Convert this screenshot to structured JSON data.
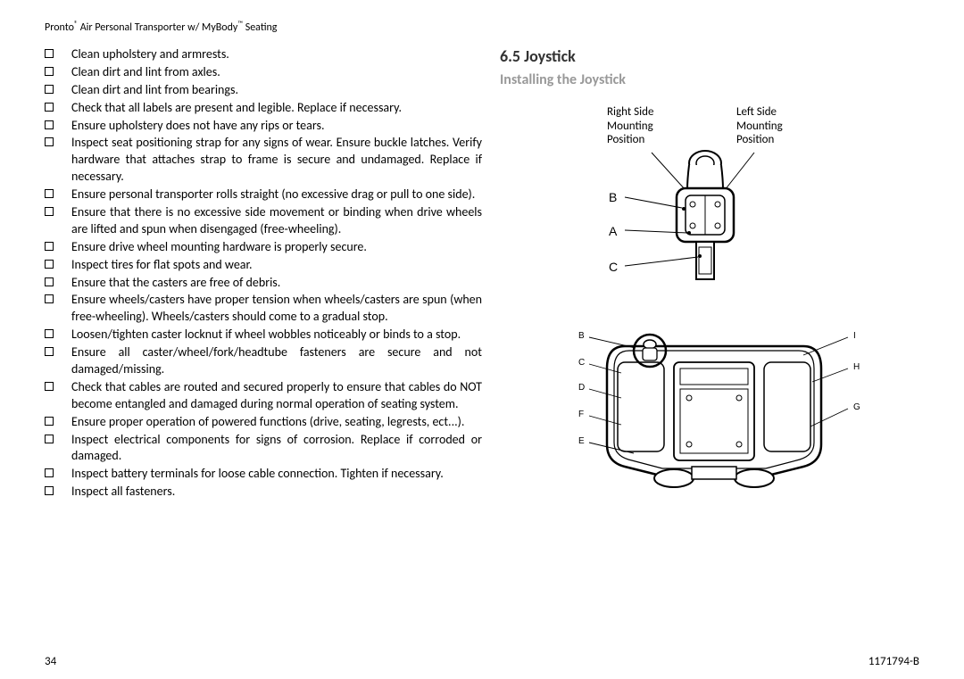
{
  "header": {
    "product": "Pronto",
    "reg": "®",
    "mid": " Air Personal Transporter w/ MyBody",
    "tm": "™",
    "tail": "  Seating"
  },
  "checklist": [
    "Clean upholstery and armrests.",
    "Clean dirt and lint from axles.",
    "Clean dirt and lint from bearings.",
    "Check that all labels are present and legible.  Replace if necessary.",
    "Ensure upholstery does not have any rips or tears.",
    "Inspect seat positioning strap for any signs of wear.  Ensure buckle latches.  Verify hardware that attaches strap to frame is secure and undamaged.  Replace if necessary.",
    "Ensure personal transporter rolls straight (no excessive drag or pull to one side).",
    "Ensure that there is no excessive side movement or binding when drive wheels are lifted and spun when disengaged (free-wheeling).",
    "Ensure drive wheel mounting hardware is properly secure.",
    "Inspect tires for flat spots and wear.",
    "Ensure that the casters are free of debris.",
    "Ensure wheels/casters have proper tension when wheels/casters are spun (when free-wheeling).  Wheels/casters should come to a gradual stop.",
    "Loosen/tighten caster locknut if wheel wobbles noticeably or binds to a stop.",
    "Ensure all caster/wheel/fork/headtube fasteners are secure and not damaged/missing.",
    "Check that cables are routed and secured properly to ensure that cables do NOT become entangled and damaged during normal operation of seating system.",
    "Ensure proper operation of powered functions (drive, seating, legrests, ect...).",
    "Inspect electrical components for signs of corrosion.  Replace if corroded or damaged.",
    "Inspect battery terminals for loose cable connection.  Tighten if necessary.",
    "Inspect all fasteners."
  ],
  "section": {
    "num": "6.5",
    "title": "Joystick"
  },
  "subsection": "Installing the Joystick",
  "labels": {
    "right": "Right Side Mounting Position",
    "left": "Left Side Mounting Position"
  },
  "top_callouts": [
    "B",
    "A",
    "C"
  ],
  "bottom_callouts_left": [
    "B",
    "C",
    "D",
    "F",
    "E"
  ],
  "bottom_callouts_right": [
    "I",
    "H",
    "G"
  ],
  "footer": {
    "page": "34",
    "doc": "1171794-B"
  },
  "colors": {
    "text": "#000000",
    "grey": "#999999",
    "bg": "#ffffff",
    "line": "#000000"
  }
}
